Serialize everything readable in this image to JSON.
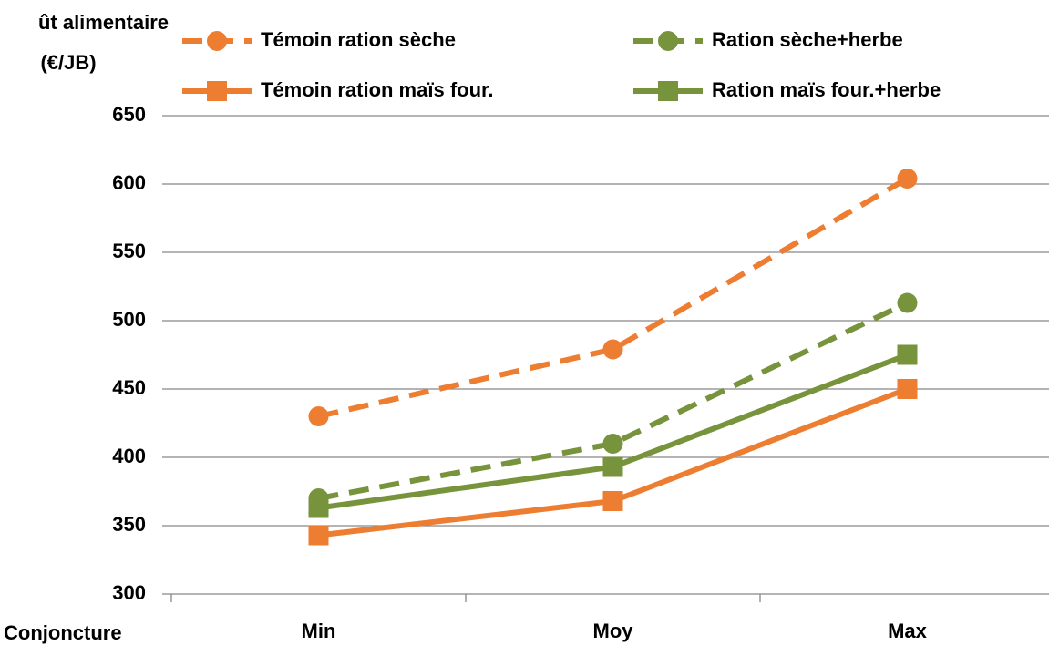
{
  "chart_data": {
    "type": "line",
    "y_axis_label": [
      "ût alimentaire",
      "(€/JB)"
    ],
    "x_axis_label": "Conjoncture",
    "categories": [
      "Min",
      "Moy",
      "Max"
    ],
    "series": [
      {
        "name": "Témoin ration sèche",
        "color": "#ed7d31",
        "dashed": true,
        "marker": "circle",
        "values": [
          430,
          479,
          604
        ]
      },
      {
        "name": "Ration sèche+herbe",
        "color": "#77933c",
        "dashed": true,
        "marker": "circle",
        "values": [
          370,
          410,
          513
        ]
      },
      {
        "name": "Témoin ration maïs four.",
        "color": "#ed7d31",
        "dashed": false,
        "marker": "square",
        "values": [
          343,
          368,
          450
        ]
      },
      {
        "name": "Ration maïs four.+herbe",
        "color": "#77933c",
        "dashed": false,
        "marker": "square",
        "values": [
          363,
          393,
          475
        ]
      }
    ],
    "ylim": [
      300,
      650
    ],
    "yticks": [
      300,
      350,
      400,
      450,
      500,
      550,
      600,
      650
    ],
    "grid": true
  }
}
